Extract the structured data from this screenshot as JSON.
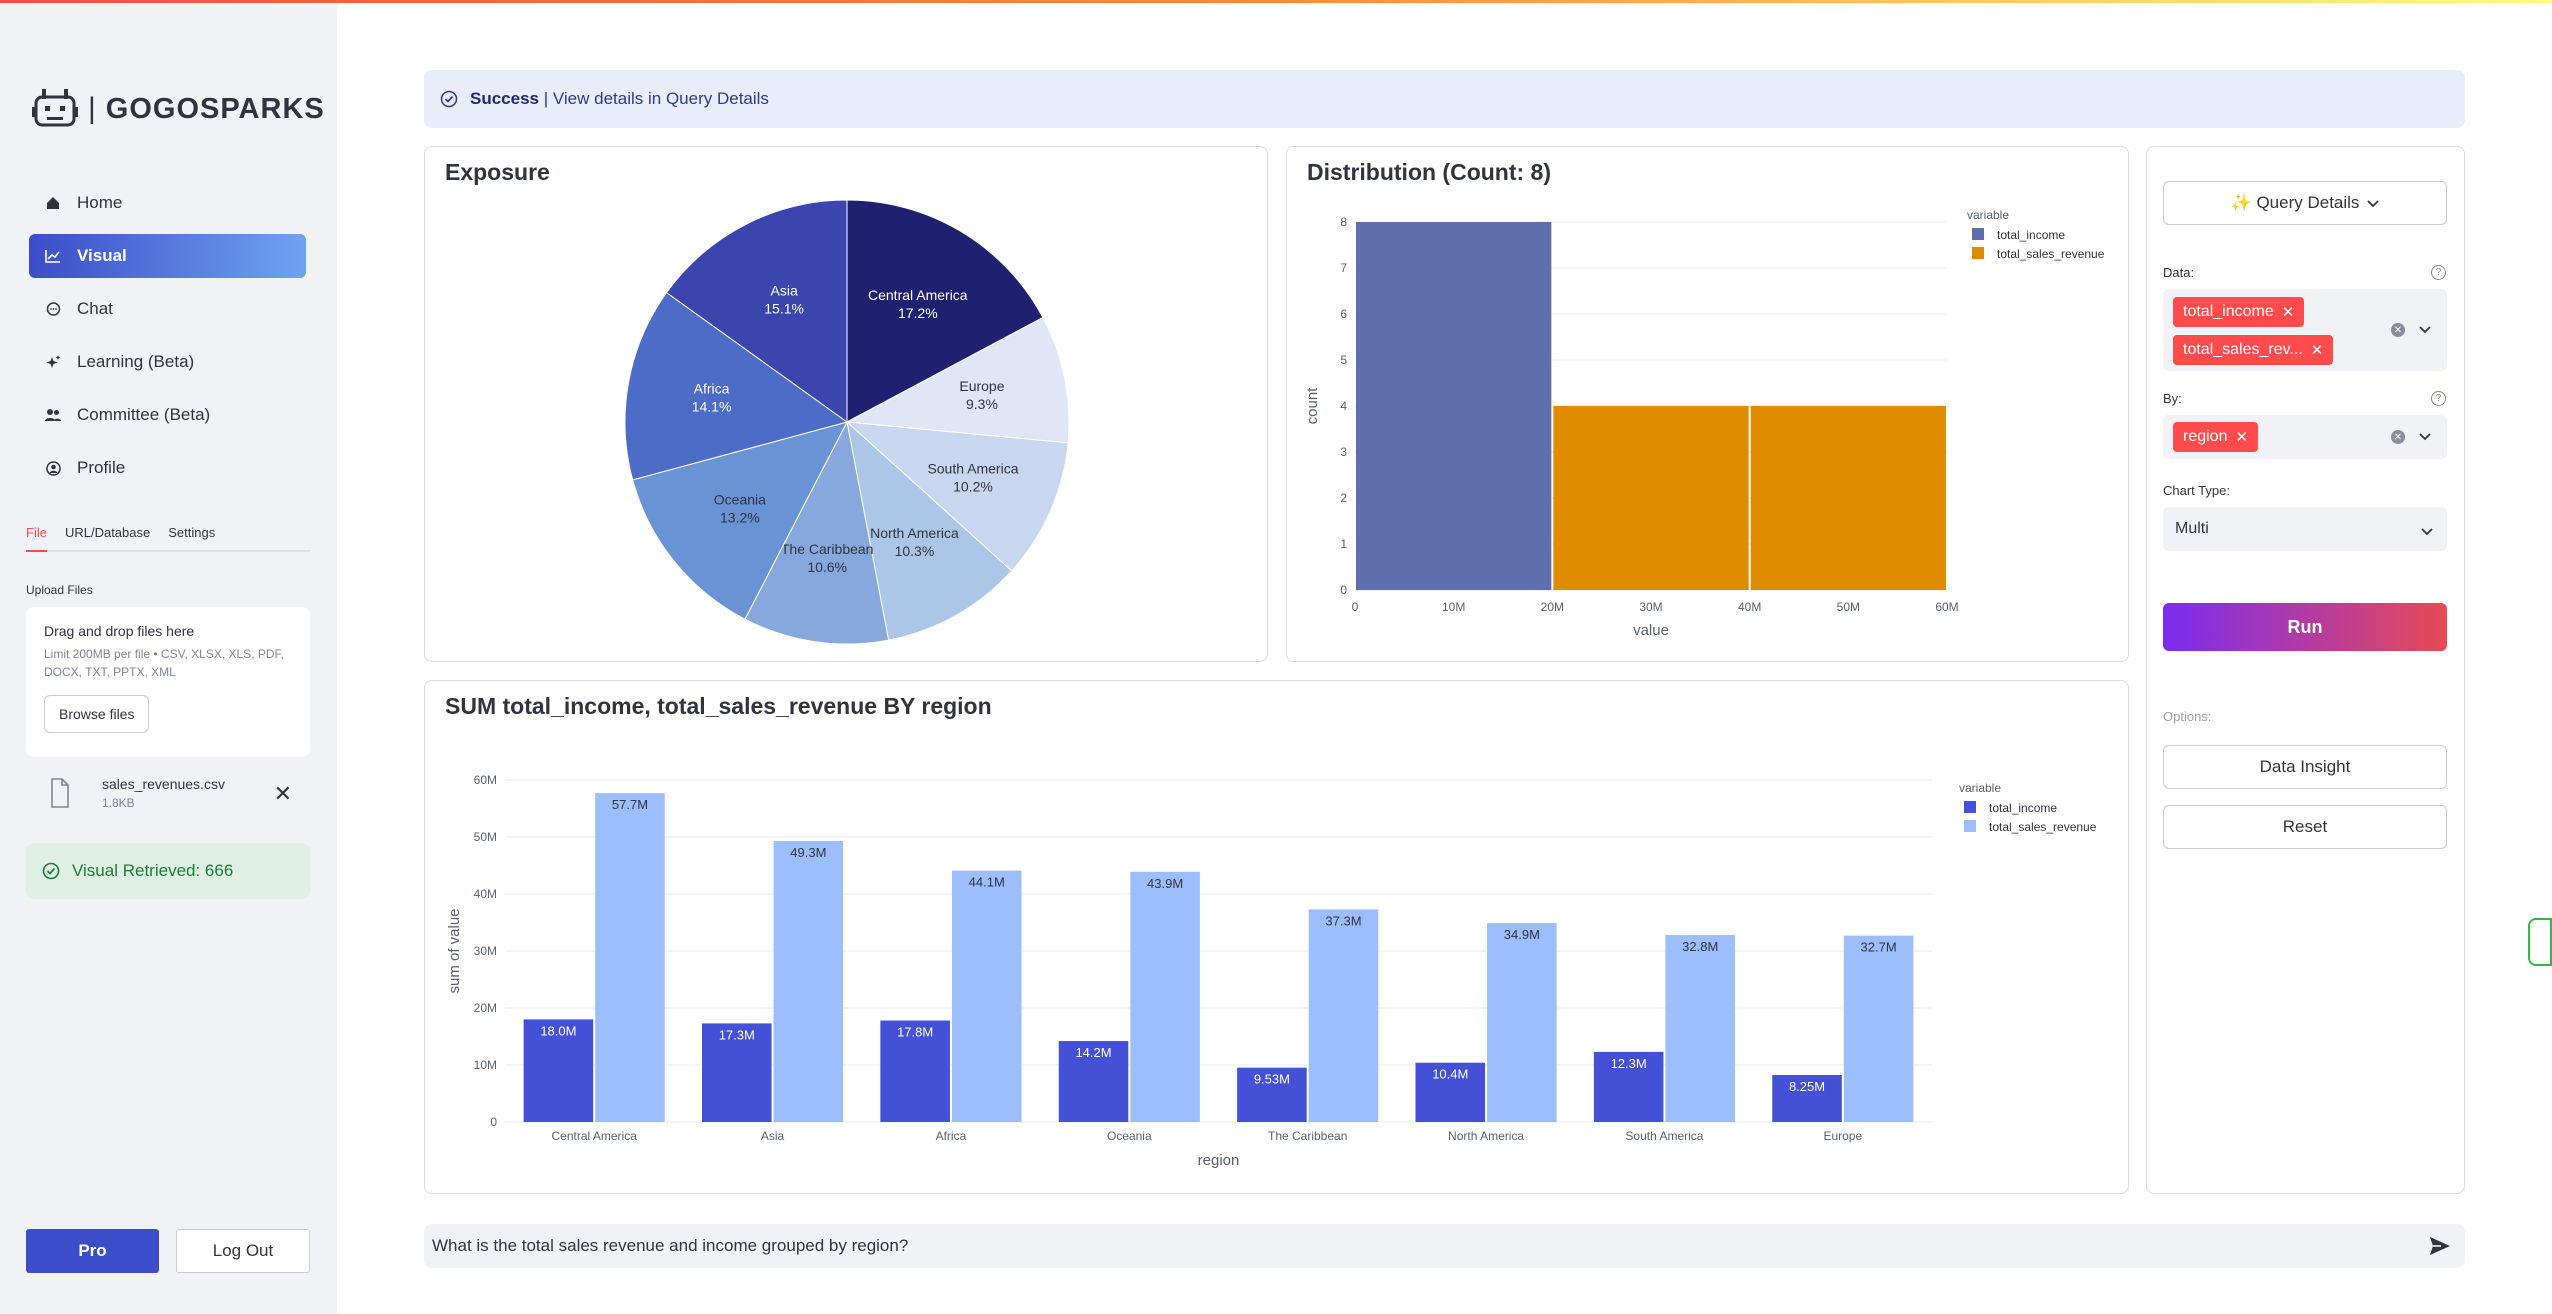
{
  "sidebar": {
    "logo_text": "GOGOSPARKS",
    "logo_sep": "|",
    "nav": [
      {
        "label": "Home",
        "icon": "home-icon"
      },
      {
        "label": "Visual",
        "icon": "trend-icon",
        "active": true
      },
      {
        "label": "Chat",
        "icon": "chat-icon"
      },
      {
        "label": "Learning (Beta)",
        "icon": "sparkle-icon"
      },
      {
        "label": "Committee (Beta)",
        "icon": "group-icon"
      },
      {
        "label": "Profile",
        "icon": "profile-icon"
      }
    ],
    "tabs": [
      "File",
      "URL/Database",
      "Settings"
    ],
    "upload_label": "Upload Files",
    "dropzone_title": "Drag and drop files here",
    "dropzone_limit": "Limit 200MB per file • CSV, XLSX, XLS, PDF, DOCX, TXT, PPTX, XML",
    "browse_label": "Browse files",
    "file_name": "sales_revenues.csv",
    "file_size": "1.8KB",
    "visual_status": "Visual Retrieved: 666",
    "pro_label": "Pro",
    "logout_label": "Log Out"
  },
  "banner": {
    "success": "Success",
    "rest": "| View details in Query Details"
  },
  "cards": {
    "exposure_title": "Exposure",
    "distribution_title": "Distribution (Count: 8)",
    "bar_title": "SUM total_income, total_sales_revenue BY region"
  },
  "panel": {
    "query_details": "✨ Query Details",
    "data_label": "Data:",
    "data_chips": [
      "total_income",
      "total_sales_rev..."
    ],
    "by_label": "By:",
    "by_chips": [
      "region"
    ],
    "chart_type_label": "Chart Type:",
    "chart_type_value": "Multi",
    "run_label": "Run",
    "options_label": "Options:",
    "data_insight_label": "Data Insight",
    "reset_label": "Reset"
  },
  "chat": {
    "query": "What is the total sales revenue and income grouped by region?"
  },
  "colors": {
    "accent": "#3b4dc8",
    "red": "#ff4b4b",
    "income": "#4450d6",
    "revenue": "#9dbefc",
    "hist_income": "#5f6fad",
    "hist_revenue": "#e08c00"
  },
  "chart_data": [
    {
      "type": "pie",
      "title": "Exposure",
      "labels": [
        "Central America",
        "Europe",
        "South America",
        "North America",
        "The Caribbean",
        "Oceania",
        "Africa",
        "Asia"
      ],
      "values": [
        17.2,
        9.3,
        10.2,
        10.3,
        10.6,
        13.2,
        14.1,
        15.1
      ],
      "value_labels": [
        "17.2%",
        "9.3%",
        "10.2%",
        "10.3%",
        "10.6%",
        "13.2%",
        "14.1%",
        "15.1%"
      ],
      "colors": [
        "#1f2170",
        "#e1e6f7",
        "#c8d6f0",
        "#abc6e6",
        "#86a8dc",
        "#6a93d6",
        "#4d6cc8",
        "#3a45ae"
      ],
      "label_colors": [
        "#ffffff",
        "#31333f",
        "#31333f",
        "#31333f",
        "#31333f",
        "#31333f",
        "#ffffff",
        "#ffffff"
      ]
    },
    {
      "type": "bar",
      "title": "Distribution (Count: 8)",
      "xlabel": "value",
      "ylabel": "count",
      "legend_title": "variable",
      "bins": [
        [
          0,
          20
        ],
        [
          20,
          40
        ],
        [
          40,
          60
        ]
      ],
      "x_ticks": [
        "0",
        "10M",
        "20M",
        "30M",
        "40M",
        "50M",
        "60M"
      ],
      "xlim": [
        0,
        60
      ],
      "ylim": [
        0,
        8
      ],
      "y_ticks": [
        0,
        1,
        2,
        3,
        4,
        5,
        6,
        7,
        8
      ],
      "series": [
        {
          "name": "total_income",
          "counts": [
            8,
            0,
            0
          ]
        },
        {
          "name": "total_sales_revenue",
          "counts": [
            0,
            4,
            4
          ]
        }
      ]
    },
    {
      "type": "bar",
      "title": "SUM total_income, total_sales_revenue BY region",
      "xlabel": "region",
      "ylabel": "sum of value",
      "legend_title": "variable",
      "categories": [
        "Central America",
        "Asia",
        "Africa",
        "Oceania",
        "The Caribbean",
        "North America",
        "South America",
        "Europe"
      ],
      "ylim": [
        0,
        60
      ],
      "y_ticks": [
        "0",
        "10M",
        "20M",
        "30M",
        "40M",
        "50M",
        "60M"
      ],
      "series": [
        {
          "name": "total_income",
          "values": [
            18.0,
            17.3,
            17.8,
            14.2,
            9.53,
            10.4,
            12.3,
            8.25
          ],
          "labels": [
            "18.0M",
            "17.3M",
            "17.8M",
            "14.2M",
            "9.53M",
            "10.4M",
            "12.3M",
            "8.25M"
          ]
        },
        {
          "name": "total_sales_revenue",
          "values": [
            57.7,
            49.3,
            44.1,
            43.9,
            37.3,
            34.9,
            32.8,
            32.7
          ],
          "labels": [
            "57.7M",
            "49.3M",
            "44.1M",
            "43.9M",
            "37.3M",
            "34.9M",
            "32.8M",
            "32.7M"
          ]
        }
      ]
    }
  ]
}
